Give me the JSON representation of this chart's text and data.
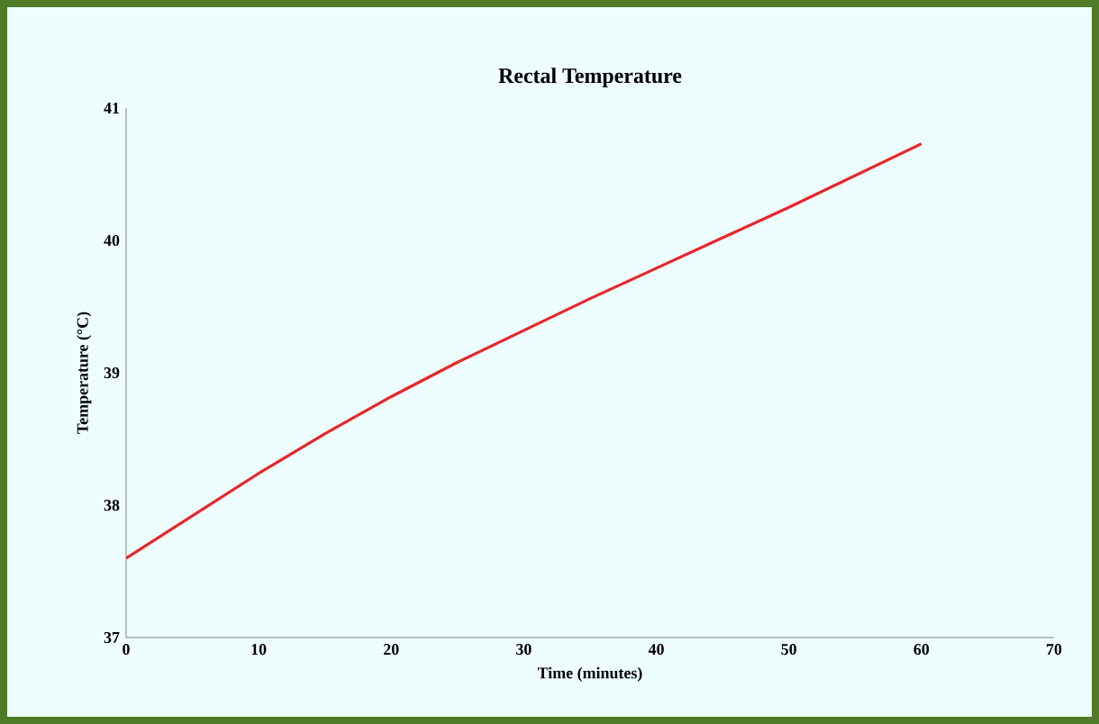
{
  "chart_data": {
    "type": "line",
    "title": "Rectal Temperature",
    "xlabel": "Time (minutes)",
    "ylabel": "Temperature (°C)",
    "x": [
      0,
      5,
      10,
      15,
      20,
      25,
      30,
      35,
      40,
      45,
      50,
      55,
      60
    ],
    "series": [
      {
        "color": "#e8262a",
        "values": [
          37.6,
          37.92,
          38.24,
          38.54,
          38.82,
          39.08,
          39.32,
          39.56,
          39.79,
          40.02,
          40.25,
          40.49,
          40.73
        ]
      }
    ],
    "xlim": [
      0,
      70
    ],
    "ylim": [
      37,
      41
    ],
    "xticks": [
      0,
      10,
      20,
      30,
      40,
      50,
      60,
      70
    ],
    "yticks": [
      37,
      38,
      39,
      40,
      41
    ],
    "marker": "none",
    "line_style": "solid"
  }
}
